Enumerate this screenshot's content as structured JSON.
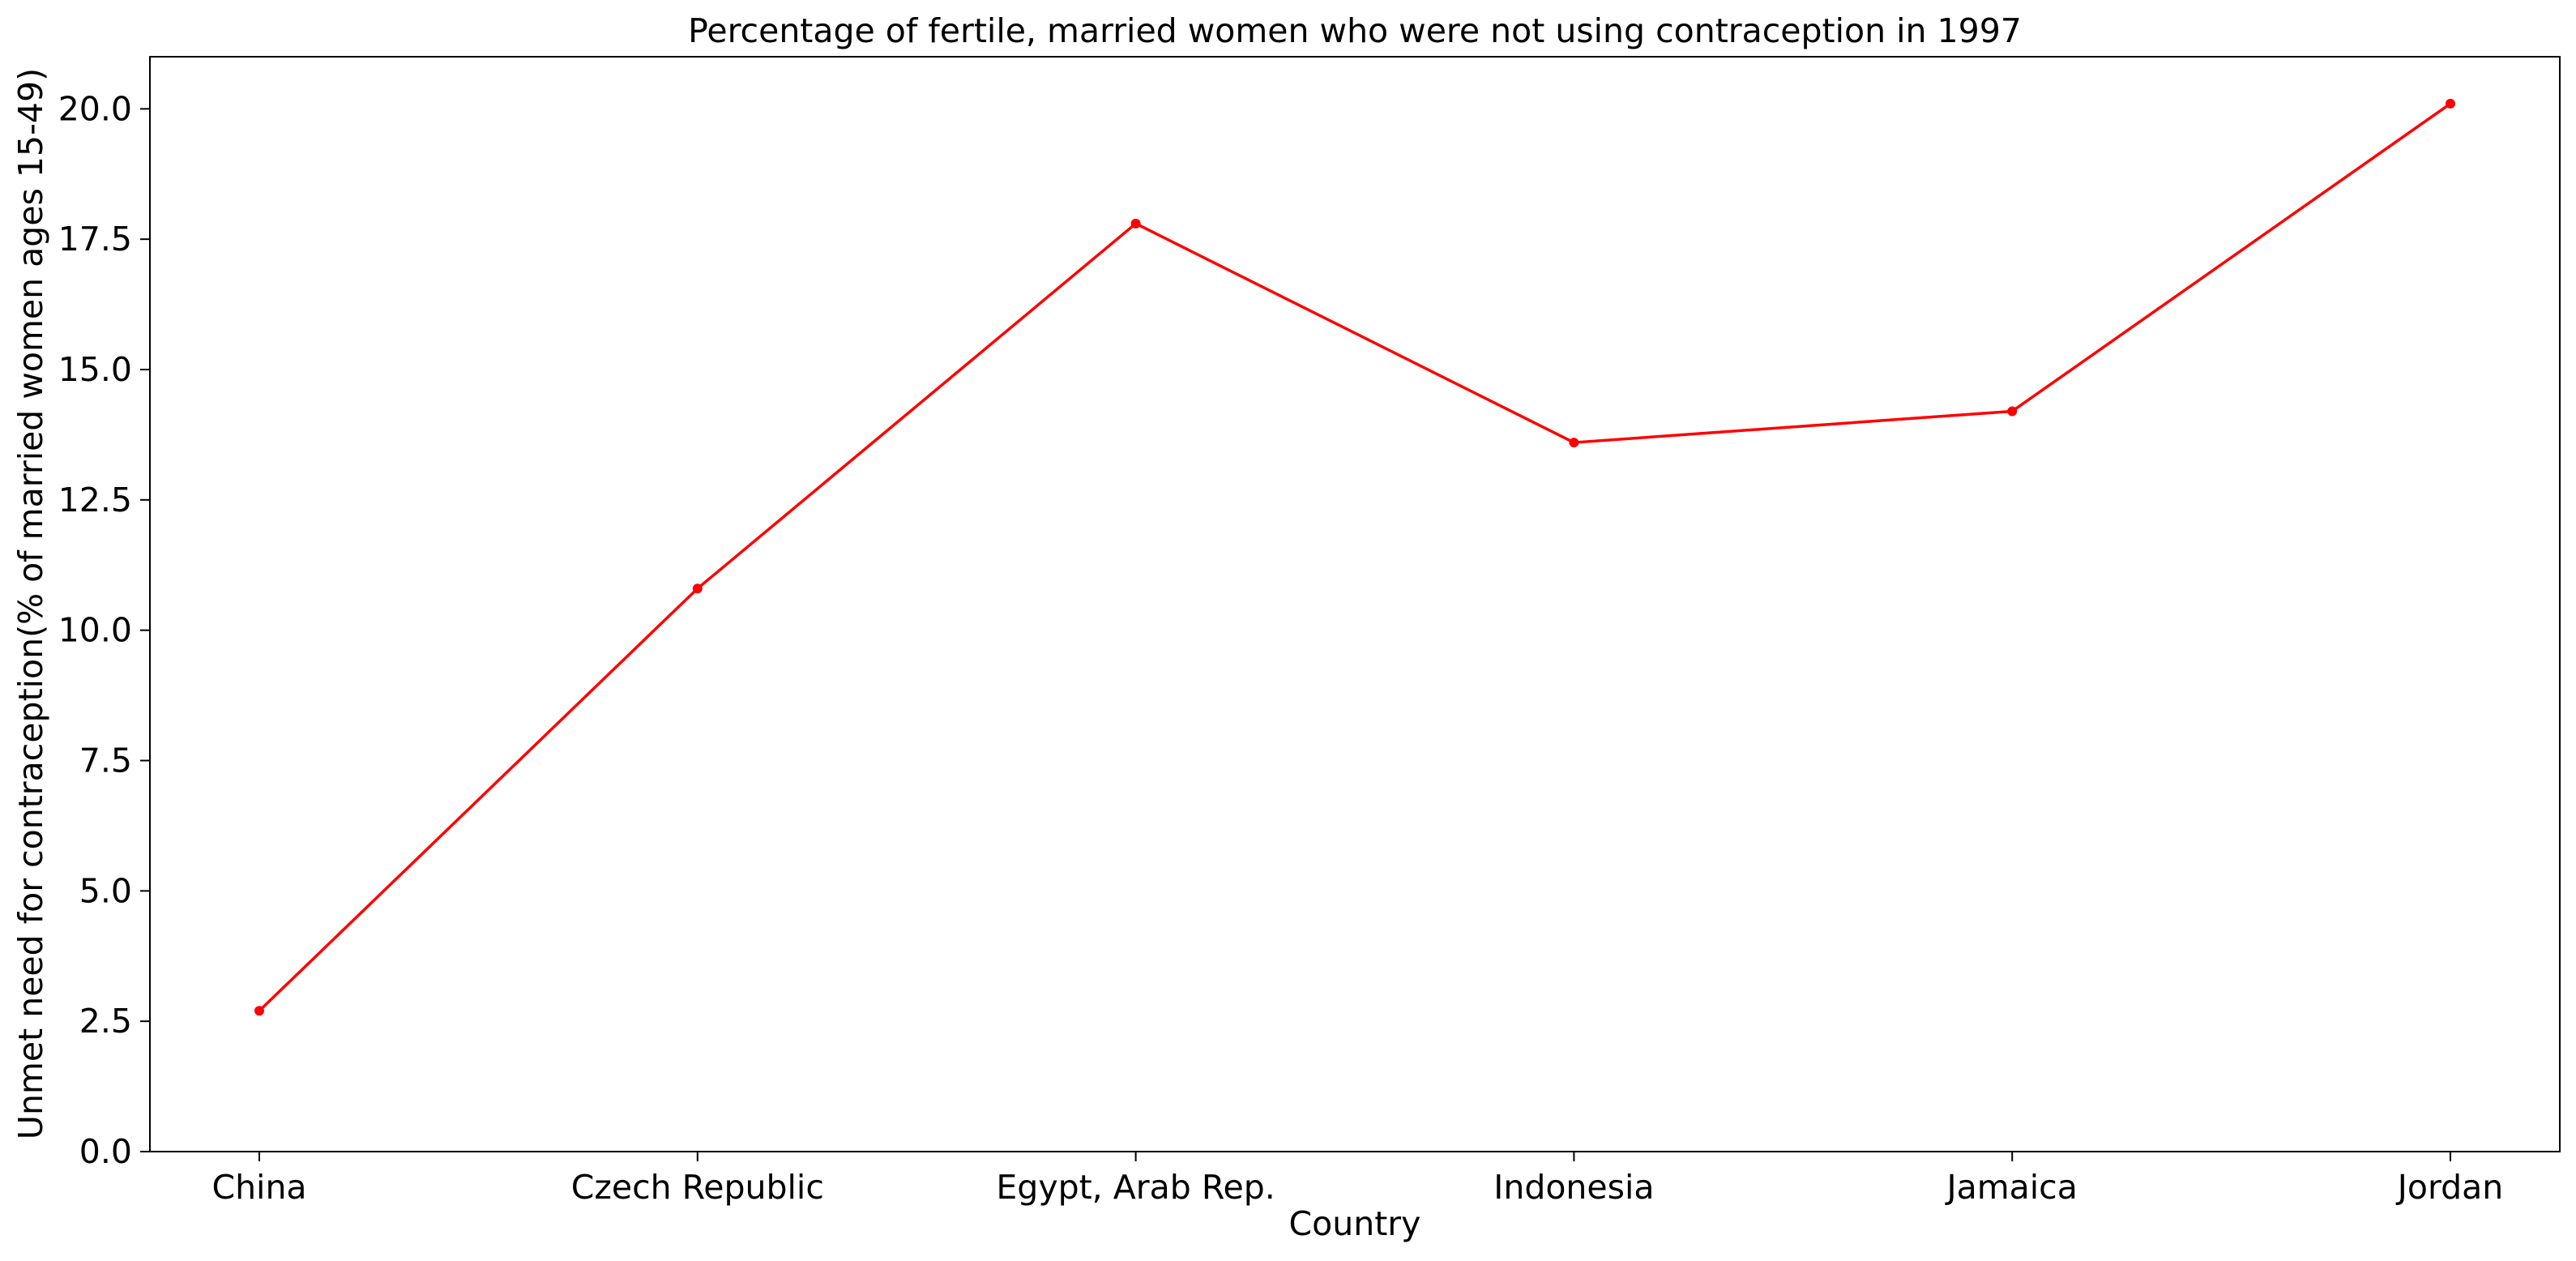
{
  "chart_data": {
    "type": "line",
    "title": "Percentage of fertile, married women who were not using contraception in 1997",
    "xlabel": "Country",
    "ylabel": "Unmet need for contraception(% of married women ages 15-49)",
    "categories": [
      "China",
      "Czech Republic",
      "Egypt, Arab Rep.",
      "Indonesia",
      "Jamaica",
      "Jordan"
    ],
    "series": [
      {
        "values": [
          2.7,
          10.8,
          17.8,
          13.6,
          14.2,
          20.1
        ],
        "color": "#ff0000",
        "marker": "circle"
      }
    ],
    "ylim": [
      0,
      21
    ],
    "yticks": [
      0.0,
      2.5,
      5.0,
      7.5,
      10.0,
      12.5,
      15.0,
      17.5,
      20.0
    ],
    "ytick_labels": [
      "0.0",
      "2.5",
      "5.0",
      "7.5",
      "10.0",
      "12.5",
      "15.0",
      "17.5",
      "20.0"
    ],
    "grid": false,
    "legend": "none"
  }
}
